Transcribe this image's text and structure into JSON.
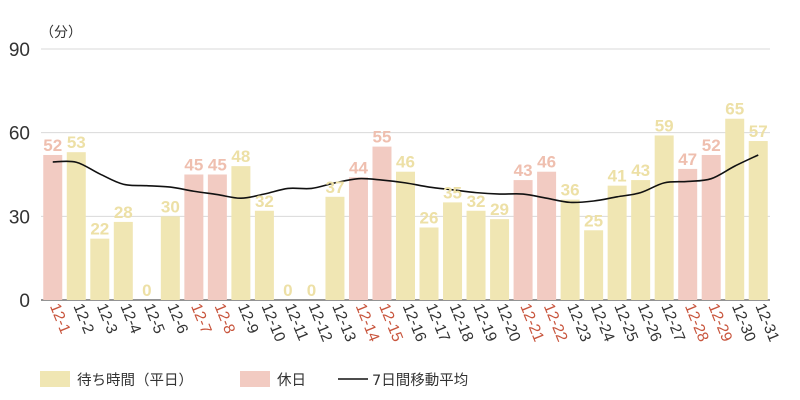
{
  "chart_data": {
    "type": "bar",
    "unit_label": "（分）",
    "ylim": [
      0,
      90
    ],
    "yticks": [
      "0",
      "30",
      "60",
      "90"
    ],
    "grid": true,
    "categories": [
      "12-1",
      "12-2",
      "12-3",
      "12-4",
      "12-5",
      "12-6",
      "12-7",
      "12-8",
      "12-9",
      "12-10",
      "12-11",
      "12-12",
      "12-13",
      "12-14",
      "12-15",
      "12-16",
      "12-17",
      "12-18",
      "12-19",
      "12-20",
      "12-21",
      "12-22",
      "12-23",
      "12-24",
      "12-25",
      "12-26",
      "12-27",
      "12-28",
      "12-29",
      "12-30",
      "12-31"
    ],
    "values": [
      52,
      53,
      22,
      28,
      0,
      30,
      45,
      45,
      48,
      32,
      0,
      0,
      37,
      44,
      55,
      46,
      26,
      35,
      32,
      29,
      43,
      46,
      36,
      25,
      41,
      43,
      59,
      47,
      52,
      65,
      57
    ],
    "holiday": [
      true,
      false,
      false,
      false,
      false,
      false,
      true,
      true,
      false,
      false,
      false,
      false,
      false,
      true,
      true,
      false,
      false,
      false,
      false,
      false,
      true,
      true,
      false,
      false,
      false,
      false,
      false,
      true,
      true,
      false,
      false
    ],
    "moving_average": [
      49.5,
      49.4,
      45.2,
      41.5,
      41.0,
      40.5,
      39.0,
      37.8,
      36.5,
      38.0,
      40.0,
      40.0,
      42.0,
      43.5,
      43.0,
      42.0,
      40.5,
      39.5,
      38.5,
      38.0,
      38.0,
      36.5,
      35.0,
      35.5,
      37.0,
      38.5,
      42.0,
      42.5,
      43.5,
      48.0,
      52.0
    ],
    "legend": {
      "weekday": "待ち時間（平日）",
      "holiday": "休日",
      "average": "7日間移動平均"
    },
    "colors": {
      "weekday_bar": "#f0e6b3",
      "holiday_bar": "#f2cbc2",
      "weekday_label": "#ede0a6",
      "holiday_label": "#efbfaf",
      "holiday_category": "#c8553d",
      "average_line": "#111111"
    }
  }
}
